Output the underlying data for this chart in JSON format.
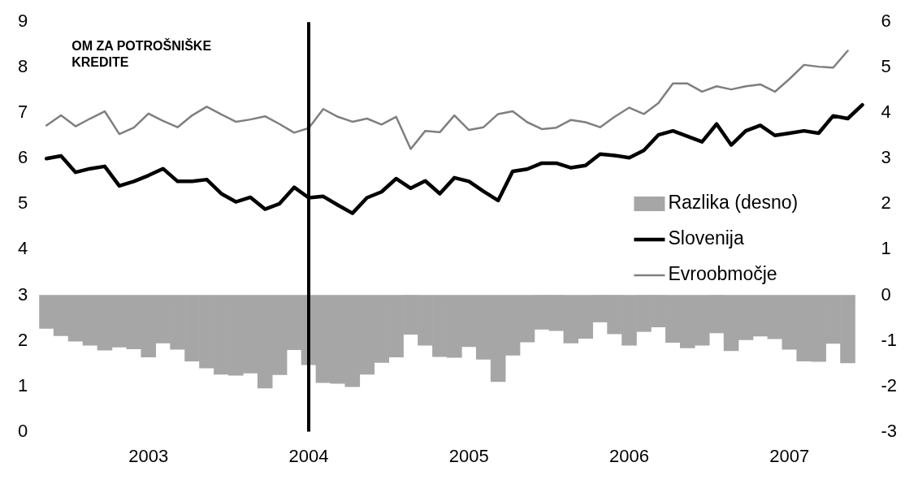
{
  "chart_data": {
    "type": "bar",
    "annotations": [
      "OM ZA POTROŠNIŠKE KREDITE"
    ],
    "categories": [
      null,
      null,
      null,
      null,
      null,
      null,
      null,
      "2003",
      null,
      null,
      null,
      null,
      null,
      null,
      null,
      null,
      null,
      null,
      "2004",
      null,
      null,
      null,
      null,
      null,
      null,
      null,
      null,
      null,
      null,
      "2005",
      null,
      null,
      null,
      null,
      null,
      null,
      null,
      null,
      null,
      null,
      "2006",
      null,
      null,
      null,
      null,
      null,
      null,
      null,
      null,
      null,
      null,
      "2007",
      null,
      null,
      null,
      null,
      null
    ],
    "ylim": [
      0,
      9
    ],
    "yticks": [
      0,
      1,
      2,
      3,
      4,
      5,
      6,
      7,
      8,
      9
    ],
    "y2lim": [
      -3,
      6
    ],
    "y2ticks": [
      -3,
      -2,
      -1,
      0,
      1,
      2,
      3,
      4,
      5,
      6
    ],
    "legend": "right",
    "grid": false,
    "ref_lines": [
      {
        "axis": "x",
        "value": "2004",
        "color": "#000000"
      }
    ],
    "series": [
      {
        "name": "Razlika (desno)",
        "axis": "y2",
        "color": "#a6a6a6",
        "values": [
          -0.73,
          -0.89,
          -1.01,
          -1.1,
          -1.21,
          -1.14,
          -1.18,
          -1.36,
          -1.05,
          -1.19,
          -1.45,
          -1.6,
          -1.74,
          -1.76,
          -1.71,
          -2.04,
          -1.75,
          -1.2,
          -1.53,
          -1.92,
          -1.94,
          -2.01,
          -1.74,
          -1.48,
          -1.36,
          -0.86,
          -1.1,
          -1.35,
          -1.37,
          -1.13,
          -1.41,
          -1.9,
          -1.32,
          -1.03,
          -0.75,
          -0.78,
          -1.05,
          -0.95,
          -0.59,
          -0.85,
          -1.1,
          -0.8,
          -0.7,
          -1.04,
          -1.16,
          -1.1,
          -0.83,
          -1.22,
          -0.98,
          -0.9,
          -0.96,
          -1.19,
          -1.45,
          -1.46,
          -1.06,
          -1.49,
          null
        ]
      },
      {
        "name": "Slovenija",
        "type": "line",
        "color": "#000000",
        "values": [
          6.0,
          6.06,
          5.7,
          5.78,
          5.83,
          5.4,
          5.5,
          5.63,
          5.78,
          5.5,
          5.5,
          5.54,
          5.23,
          5.05,
          5.15,
          4.89,
          5.01,
          5.37,
          5.14,
          5.17,
          4.98,
          4.8,
          5.14,
          5.27,
          5.56,
          5.35,
          5.51,
          5.23,
          5.58,
          5.5,
          5.28,
          5.08,
          5.72,
          5.77,
          5.9,
          5.9,
          5.8,
          5.85,
          6.1,
          6.07,
          6.02,
          6.18,
          6.52,
          6.61,
          6.49,
          6.37,
          6.76,
          6.3,
          6.61,
          6.73,
          6.51,
          6.56,
          6.61,
          6.56,
          6.94,
          6.88,
          7.18
        ]
      },
      {
        "name": "Evroobmočje",
        "type": "line",
        "color": "#7f7f7f",
        "values": [
          6.73,
          6.95,
          6.71,
          6.88,
          7.04,
          6.54,
          6.68,
          6.99,
          6.83,
          6.69,
          6.95,
          7.14,
          6.97,
          6.81,
          6.86,
          6.93,
          6.76,
          6.57,
          6.67,
          7.09,
          6.92,
          6.81,
          6.88,
          6.75,
          6.92,
          6.21,
          6.61,
          6.58,
          6.95,
          6.63,
          6.69,
          6.98,
          7.04,
          6.8,
          6.65,
          6.68,
          6.85,
          6.8,
          6.69,
          6.92,
          7.12,
          6.98,
          7.22,
          7.65,
          7.65,
          7.47,
          7.59,
          7.52,
          7.59,
          7.63,
          7.47,
          7.75,
          8.06,
          8.02,
          8.0,
          8.37,
          null
        ]
      }
    ]
  }
}
